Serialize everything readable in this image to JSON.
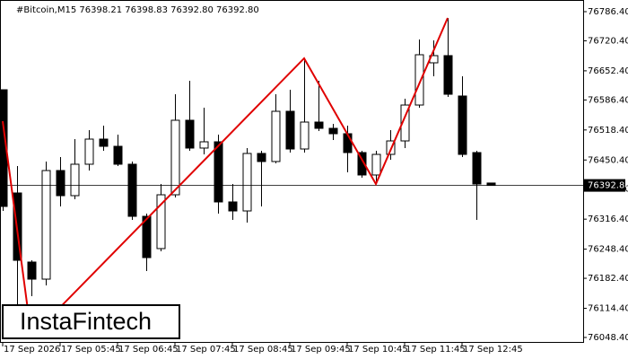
{
  "chart_data": {
    "type": "candlestick",
    "title": "#Bitcoin,M15  76398.21 76398.83 76392.80 76392.80",
    "watermark": "InstaFintech",
    "categories": [
      "17 Sep 2026",
      null,
      null,
      null,
      "17 Sep 05:45",
      null,
      null,
      null,
      "17 Sep 06:45",
      null,
      null,
      null,
      "17 Sep 07:45",
      null,
      null,
      null,
      "17 Sep 08:45",
      null,
      null,
      null,
      "17 Sep 09:45",
      null,
      null,
      null,
      "17 Sep 10:45",
      null,
      null,
      null,
      "17 Sep 11:45",
      null,
      null,
      null,
      "17 Sep 12:45",
      null,
      null
    ],
    "open": [
      76609.5,
      76375.7,
      76219.2,
      76180.5,
      76426.5,
      76369.6,
      76440.8,
      76497.7,
      76481.4,
      76440.8,
      76322.8,
      76249.7,
      76371.6,
      76540.4,
      76477.4,
      76491.6,
      76355.4,
      76335.0,
      76465.2,
      76446.9,
      76560.7,
      76475.3,
      76536.3,
      76522.1,
      76509.9,
      76467.2,
      76416.4,
      76463.1,
      76493.6,
      76574.9,
      76670.5,
      76686.8,
      76595.3,
      76467.2,
      76398.21
    ],
    "high": [
      76609.5,
      76436.7,
      76223.2,
      76446.9,
      76457.0,
      76497.7,
      76518.0,
      76528.2,
      76507.8,
      76446.9,
      76328.9,
      76396.0,
      76599.3,
      76629.8,
      76568.8,
      76507.8,
      76396.0,
      76477.4,
      76471.3,
      76599.3,
      76609.5,
      76680.7,
      76629.8,
      76532.2,
      76528.2,
      76471.3,
      76471.3,
      76518.0,
      76589.2,
      76723.3,
      76721.3,
      76772.1,
      76640.0,
      76471.3,
      76398.83
    ],
    "low": [
      76335.0,
      76050.4,
      76141.9,
      76166.3,
      76345.2,
      76361.5,
      76426.5,
      76471.3,
      76436.7,
      76314.7,
      76198.8,
      76243.6,
      76365.5,
      76471.3,
      76463.1,
      76328.9,
      76314.7,
      76308.6,
      76345.2,
      76442.8,
      76467.2,
      76467.2,
      76516.0,
      76495.7,
      76422.5,
      76410.3,
      76396.0,
      76450.9,
      76477.4,
      76568.8,
      76640.0,
      76593.2,
      76457.0,
      76314.7,
      76392.8
    ],
    "close": [
      76345.2,
      76223.2,
      76180.5,
      76426.5,
      76369.6,
      76440.8,
      76497.7,
      76481.4,
      76440.8,
      76322.8,
      76229.3,
      76371.6,
      76540.4,
      76477.4,
      76491.6,
      76355.4,
      76335.0,
      76465.2,
      76446.9,
      76560.7,
      76475.3,
      76536.3,
      76522.1,
      76509.9,
      76467.2,
      76416.4,
      76463.1,
      76493.6,
      76574.9,
      76688.8,
      76686.8,
      76599.3,
      76463.1,
      76396.0,
      76392.8
    ],
    "up_color": "#ffffff",
    "down_color": "#000000",
    "ylim": [
      76036.2,
      76812.8
    ],
    "yticks": [
      {
        "value": 76786.4,
        "label": "76786.40"
      },
      {
        "value": 76720.4,
        "label": "76720.40"
      },
      {
        "value": 76652.4,
        "label": "76652.40"
      },
      {
        "value": 76586.4,
        "label": "76586.40"
      },
      {
        "value": 76518.4,
        "label": "76518.40"
      },
      {
        "value": 76450.4,
        "label": "76450.40"
      },
      {
        "value": 76384.4,
        "label": "76384.40"
      },
      {
        "value": 76316.4,
        "label": "76316.40"
      },
      {
        "value": 76248.4,
        "label": "76248.40"
      },
      {
        "value": 76182.4,
        "label": "76182.40"
      },
      {
        "value": 76114.4,
        "label": "76114.40"
      },
      {
        "value": 76048.4,
        "label": "76048.40"
      }
    ],
    "last_price": {
      "value": 76392.8,
      "label": "76392.80"
    },
    "pattern": {
      "color": "#e00000",
      "x": [
        0,
        2,
        21,
        26,
        31
      ],
      "y": [
        76538.4,
        76050.4,
        76680.7,
        76396.0,
        76772.1
      ]
    }
  }
}
